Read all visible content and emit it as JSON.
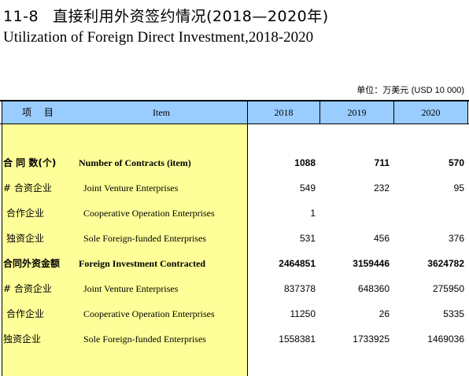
{
  "title": {
    "number": "11-8",
    "cn": "直接利用外资签约情况(2018—2020年)",
    "en": "Utilization of Foreign Direct Investment,2018-2020"
  },
  "unit": {
    "cn": "单位：万美元",
    "en": "(USD 10 000)"
  },
  "table": {
    "header": {
      "item_cn": "项  目",
      "item_en": "Item",
      "years": [
        "2018",
        "2019",
        "2020"
      ]
    },
    "rows": [
      {
        "cn": "合 同 数(个)",
        "en": "Number of Contracts (item)",
        "values": [
          "1088",
          "711",
          "570"
        ],
        "bold": true
      },
      {
        "cn": "# 合资企业",
        "en": "Joint Venture Enterprises",
        "values": [
          "549",
          "232",
          "95"
        ],
        "bold": false
      },
      {
        "cn": "合作企业",
        "en": "Cooperative Operation Enterprises",
        "values": [
          "1",
          "",
          ""
        ],
        "bold": false
      },
      {
        "cn": "独资企业",
        "en": "Sole Foreign-funded Enterprises",
        "values": [
          "531",
          "456",
          "376"
        ],
        "bold": false
      },
      {
        "cn": "合同外资金额",
        "en": "Foreign Investment Contracted",
        "values": [
          "2464851",
          "3159446",
          "3624782"
        ],
        "bold": true
      },
      {
        "cn": "# 合资企业",
        "en": "Joint Venture Enterprises",
        "values": [
          "837378",
          "648360",
          "275950"
        ],
        "bold": false
      },
      {
        "cn": "合作企业",
        "en": "Cooperative Operation Enterprises",
        "values": [
          "11250",
          "26",
          "5335"
        ],
        "bold": false
      },
      {
        "cn": "独资企业",
        "en": "Sole Foreign-funded Enterprises",
        "values": [
          "1558381",
          "1733925",
          "1469036"
        ],
        "bold": false
      }
    ]
  },
  "colors": {
    "header_bg": "#99ccff",
    "stub_bg": "#ffff99"
  }
}
